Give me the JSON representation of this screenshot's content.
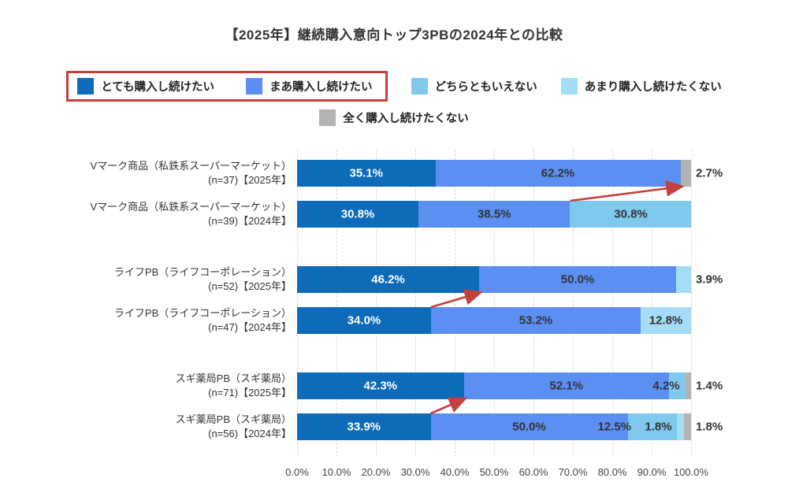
{
  "title": "【2025年】継続購入意向トップ3PBの2024年との比較",
  "accent_color": "#c4403a",
  "legend": {
    "items": [
      {
        "label": "とても購入し続けたい",
        "color": "#0d6bb7",
        "highlight": true
      },
      {
        "label": "まあ購入し続けたい",
        "color": "#5b8ff2",
        "highlight": true
      },
      {
        "label": "どちらともいえない",
        "color": "#7ec9ed",
        "highlight": false
      },
      {
        "label": "あまり購入し続けたくない",
        "color": "#a5ddf6",
        "highlight": false
      },
      {
        "label": "全く購入し続けたくない",
        "color": "#b3b3b3",
        "highlight": false
      }
    ]
  },
  "chart_data": {
    "type": "bar",
    "orientation": "horizontal",
    "stacked": true,
    "xlim": [
      0,
      100
    ],
    "grid": "dashed-vertical",
    "x_ticks": [
      "0.0%",
      "10.0%",
      "20.0%",
      "30.0%",
      "40.0%",
      "50.0%",
      "60.0%",
      "70.0%",
      "80.0%",
      "90.0%",
      "100.0%"
    ],
    "categories_series": [
      "とても購入し続けたい",
      "まあ購入し続けたい",
      "どちらともいえない",
      "あまり購入し続けたくない",
      "全く購入し続けたくない"
    ],
    "series_colors": [
      "#0d6bb7",
      "#5b8ff2",
      "#7ec9ed",
      "#a5ddf6",
      "#b3b3b3"
    ],
    "rows": [
      {
        "label_line1": "Vマーク商品（私鉄系スーパーマーケット）",
        "label_line2": "(n=37)【2025年】",
        "segments": [
          {
            "cat": 0,
            "value": 35.1,
            "label": "35.1%"
          },
          {
            "cat": 1,
            "value": 62.2,
            "label": "62.2%"
          },
          {
            "cat": 4,
            "value": 2.7,
            "label": "2.7%",
            "label_outside": true
          }
        ]
      },
      {
        "label_line1": "Vマーク商品（私鉄系スーパーマーケット）",
        "label_line2": "(n=39)【2024年】",
        "segments": [
          {
            "cat": 0,
            "value": 30.8,
            "label": "30.8%"
          },
          {
            "cat": 1,
            "value": 38.5,
            "label": "38.5%"
          },
          {
            "cat": 2,
            "value": 30.8,
            "label": "30.8%"
          }
        ]
      },
      {
        "label_line1": "ライフPB（ライフコーポレーション）",
        "label_line2": "(n=52)【2025年】",
        "segments": [
          {
            "cat": 0,
            "value": 46.2,
            "label": "46.2%"
          },
          {
            "cat": 1,
            "value": 50.0,
            "label": "50.0%"
          },
          {
            "cat": 3,
            "value": 3.9,
            "label": "3.9%",
            "label_outside": true
          }
        ]
      },
      {
        "label_line1": "ライフPB（ライフコーポレーション）",
        "label_line2": "(n=47)【2024年】",
        "segments": [
          {
            "cat": 0,
            "value": 34.0,
            "label": "34.0%"
          },
          {
            "cat": 1,
            "value": 53.2,
            "label": "53.2%"
          },
          {
            "cat": 3,
            "value": 12.8,
            "label": "12.8%"
          }
        ]
      },
      {
        "label_line1": "スギ薬局PB（スギ薬局）",
        "label_line2": "(n=71)【2025年】",
        "segments": [
          {
            "cat": 0,
            "value": 42.3,
            "label": "42.3%"
          },
          {
            "cat": 1,
            "value": 52.1,
            "label": "52.1%"
          },
          {
            "cat": 2,
            "value": 4.2,
            "label": "4.2%",
            "dx": -14
          },
          {
            "cat": 4,
            "value": 1.4,
            "label": "1.4%",
            "label_outside": true
          }
        ]
      },
      {
        "label_line1": "スギ薬局PB（スギ薬局）",
        "label_line2": "(n=56)【2024年】",
        "segments": [
          {
            "cat": 0,
            "value": 33.9,
            "label": "33.9%"
          },
          {
            "cat": 1,
            "value": 50.0,
            "label": "50.0%"
          },
          {
            "cat": 2,
            "value": 12.5,
            "label": "12.5%",
            "dx": -48
          },
          {
            "cat": 3,
            "value": 1.8,
            "label": "1.8%",
            "dx": -28
          },
          {
            "cat": 4,
            "value": 1.8,
            "label": "1.8%",
            "label_outside": true
          }
        ]
      }
    ],
    "annotations": {
      "arrows": [
        {
          "from_row": 1,
          "from_pct": 69.3,
          "to_row": 0,
          "to_pct": 97.3
        },
        {
          "from_row": 3,
          "from_pct": 34.0,
          "to_row": 2,
          "to_pct": 46.2
        },
        {
          "from_row": 5,
          "from_pct": 33.9,
          "to_row": 4,
          "to_pct": 42.3
        }
      ]
    }
  }
}
